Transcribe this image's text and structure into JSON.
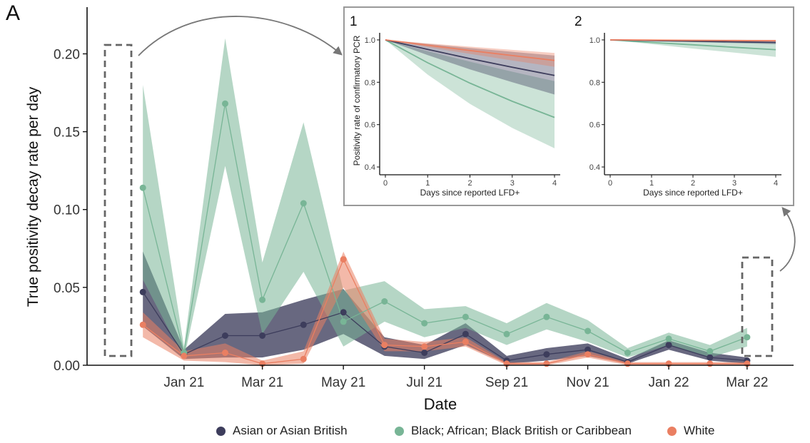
{
  "panel_label": "A",
  "colors": {
    "asian": "#3d3d5c",
    "black": "#78b596",
    "white": "#ea7f62",
    "box": "#666666",
    "arrow": "#777777"
  },
  "legend": [
    {
      "key": "asian",
      "label": "Asian or Asian British"
    },
    {
      "key": "black",
      "label": "Black; African; Black British or Caribbean"
    },
    {
      "key": "white",
      "label": "White"
    }
  ],
  "chart_data": [
    {
      "type": "line",
      "xlabel": "Date",
      "ylabel": "True positivity decay rate per day",
      "ylim": [
        0,
        0.23
      ],
      "y_ticks": [
        0,
        0.05,
        0.1,
        0.15,
        0.2
      ],
      "y_tick_labels": [
        "0.00",
        "0.05",
        "0.10",
        "0.15",
        "0.20"
      ],
      "x_ticks": [
        {
          "date": "2021-01-01",
          "label": "Jan 21"
        },
        {
          "date": "2021-03-01",
          "label": "Mar 21"
        },
        {
          "date": "2021-05-01",
          "label": "May 21"
        },
        {
          "date": "2021-07-01",
          "label": "Jul 21"
        },
        {
          "date": "2021-09-01",
          "label": "Sep 21"
        },
        {
          "date": "2021-11-01",
          "label": "Nov 21"
        },
        {
          "date": "2022-01-01",
          "label": "Jan 22"
        },
        {
          "date": "2022-03-01",
          "label": "Mar 22"
        }
      ],
      "xlim": [
        "2020-10-20",
        "2022-04-05"
      ],
      "series": [
        {
          "name": "Asian or Asian British",
          "key": "asian",
          "points": [
            {
              "date": "2020-12-01",
              "y": 0.047,
              "lo": 0.025,
              "hi": 0.073
            },
            {
              "date": "2021-01-01",
              "y": 0.007,
              "lo": 0.004,
              "hi": 0.01
            },
            {
              "date": "2021-02-01",
              "y": 0.019,
              "lo": 0.005,
              "hi": 0.033
            },
            {
              "date": "2021-03-01",
              "y": 0.019,
              "lo": 0.005,
              "hi": 0.034
            },
            {
              "date": "2021-04-01",
              "y": 0.026,
              "lo": 0.01,
              "hi": 0.042
            },
            {
              "date": "2021-05-01",
              "y": 0.034,
              "lo": 0.02,
              "hi": 0.049
            },
            {
              "date": "2021-06-01",
              "y": 0.012,
              "lo": 0.006,
              "hi": 0.018
            },
            {
              "date": "2021-07-01",
              "y": 0.008,
              "lo": 0.004,
              "hi": 0.013
            },
            {
              "date": "2021-08-01",
              "y": 0.02,
              "lo": 0.013,
              "hi": 0.027
            },
            {
              "date": "2021-09-01",
              "y": 0.003,
              "lo": 0.001,
              "hi": 0.006
            },
            {
              "date": "2021-10-01",
              "y": 0.007,
              "lo": 0.003,
              "hi": 0.011
            },
            {
              "date": "2021-11-01",
              "y": 0.01,
              "lo": 0.006,
              "hi": 0.014
            },
            {
              "date": "2021-12-01",
              "y": 0.002,
              "lo": 0.001,
              "hi": 0.004
            },
            {
              "date": "2022-01-01",
              "y": 0.013,
              "lo": 0.01,
              "hi": 0.016
            },
            {
              "date": "2022-02-01",
              "y": 0.005,
              "lo": 0.003,
              "hi": 0.008
            },
            {
              "date": "2022-03-01",
              "y": 0.003,
              "lo": 0.001,
              "hi": 0.005
            }
          ]
        },
        {
          "name": "Black; African; Black British or Caribbean",
          "key": "black",
          "points": [
            {
              "date": "2020-12-01",
              "y": 0.114,
              "lo": 0.055,
              "hi": 0.18
            },
            {
              "date": "2021-01-01",
              "y": 0.008,
              "lo": 0.004,
              "hi": 0.012
            },
            {
              "date": "2021-02-01",
              "y": 0.168,
              "lo": 0.128,
              "hi": 0.21
            },
            {
              "date": "2021-03-01",
              "y": 0.042,
              "lo": 0.02,
              "hi": 0.066
            },
            {
              "date": "2021-04-01",
              "y": 0.104,
              "lo": 0.06,
              "hi": 0.156
            },
            {
              "date": "2021-05-01",
              "y": 0.028,
              "lo": 0.012,
              "hi": 0.048
            },
            {
              "date": "2021-06-01",
              "y": 0.041,
              "lo": 0.028,
              "hi": 0.054
            },
            {
              "date": "2021-07-01",
              "y": 0.027,
              "lo": 0.018,
              "hi": 0.036
            },
            {
              "date": "2021-08-01",
              "y": 0.031,
              "lo": 0.024,
              "hi": 0.038
            },
            {
              "date": "2021-09-01",
              "y": 0.02,
              "lo": 0.013,
              "hi": 0.027
            },
            {
              "date": "2021-10-01",
              "y": 0.031,
              "lo": 0.023,
              "hi": 0.04
            },
            {
              "date": "2021-11-01",
              "y": 0.022,
              "lo": 0.015,
              "hi": 0.029
            },
            {
              "date": "2021-12-01",
              "y": 0.008,
              "lo": 0.005,
              "hi": 0.011
            },
            {
              "date": "2022-01-01",
              "y": 0.017,
              "lo": 0.013,
              "hi": 0.021
            },
            {
              "date": "2022-02-01",
              "y": 0.009,
              "lo": 0.005,
              "hi": 0.013
            },
            {
              "date": "2022-03-01",
              "y": 0.018,
              "lo": 0.012,
              "hi": 0.024
            }
          ]
        },
        {
          "name": "White",
          "key": "white",
          "points": [
            {
              "date": "2020-12-01",
              "y": 0.026,
              "lo": 0.018,
              "hi": 0.034
            },
            {
              "date": "2021-01-01",
              "y": 0.006,
              "lo": 0.003,
              "hi": 0.009
            },
            {
              "date": "2021-02-01",
              "y": 0.008,
              "lo": 0.002,
              "hi": 0.014
            },
            {
              "date": "2021-03-01",
              "y": 0.001,
              "lo": 0.0,
              "hi": 0.003
            },
            {
              "date": "2021-04-01",
              "y": 0.004,
              "lo": 0.001,
              "hi": 0.009
            },
            {
              "date": "2021-05-01",
              "y": 0.068,
              "lo": 0.05,
              "hi": 0.073
            },
            {
              "date": "2021-06-01",
              "y": 0.013,
              "lo": 0.009,
              "hi": 0.017
            },
            {
              "date": "2021-07-01",
              "y": 0.012,
              "lo": 0.009,
              "hi": 0.015
            },
            {
              "date": "2021-08-01",
              "y": 0.015,
              "lo": 0.012,
              "hi": 0.018
            },
            {
              "date": "2021-09-01",
              "y": 0.001,
              "lo": 0.0,
              "hi": 0.002
            },
            {
              "date": "2021-10-01",
              "y": 0.001,
              "lo": 0.0,
              "hi": 0.002
            },
            {
              "date": "2021-11-01",
              "y": 0.007,
              "lo": 0.005,
              "hi": 0.009
            },
            {
              "date": "2021-12-01",
              "y": 0.001,
              "lo": 0.0,
              "hi": 0.002
            },
            {
              "date": "2022-01-01",
              "y": 0.001,
              "lo": 0.0,
              "hi": 0.002
            },
            {
              "date": "2022-02-01",
              "y": 0.001,
              "lo": 0.0,
              "hi": 0.002
            },
            {
              "date": "2022-03-01",
              "y": 0.001,
              "lo": 0.0,
              "hi": 0.002
            }
          ]
        }
      ]
    },
    {
      "type": "line",
      "panel": "1",
      "xlabel": "Days since reported LFD+",
      "ylabel": "Positivity rate of confirmatory PCR",
      "xlim": [
        0,
        4
      ],
      "ylim": [
        0.38,
        1.02
      ],
      "x_ticks": [
        0,
        1,
        2,
        3,
        4
      ],
      "x_tick_labels": [
        "0",
        "1",
        "2",
        "3",
        "4"
      ],
      "y_ticks": [
        0.4,
        0.6,
        0.8,
        1.0
      ],
      "y_tick_labels": [
        "0.4",
        "0.6",
        "0.8",
        "1.0"
      ],
      "series": [
        {
          "key": "black",
          "x": [
            0,
            1,
            2,
            3,
            4
          ],
          "y": [
            1.0,
            0.892,
            0.796,
            0.71,
            0.634
          ],
          "lo": [
            1.0,
            0.836,
            0.698,
            0.584,
            0.488
          ],
          "hi": [
            1.0,
            0.947,
            0.897,
            0.85,
            0.805
          ]
        },
        {
          "key": "asian",
          "x": [
            0,
            1,
            2,
            3,
            4
          ],
          "y": [
            1.0,
            0.955,
            0.912,
            0.871,
            0.832
          ],
          "lo": [
            1.0,
            0.928,
            0.861,
            0.8,
            0.742
          ],
          "hi": [
            1.0,
            0.981,
            0.962,
            0.944,
            0.926
          ]
        },
        {
          "key": "white",
          "x": [
            0,
            1,
            2,
            3,
            4
          ],
          "y": [
            1.0,
            0.975,
            0.95,
            0.926,
            0.903
          ],
          "lo": [
            1.0,
            0.966,
            0.934,
            0.903,
            0.873
          ],
          "hi": [
            1.0,
            0.984,
            0.968,
            0.953,
            0.938
          ]
        }
      ]
    },
    {
      "type": "line",
      "panel": "2",
      "xlabel": "Days since reported LFD+",
      "ylabel": "",
      "xlim": [
        0,
        4
      ],
      "ylim": [
        0.38,
        1.02
      ],
      "x_ticks": [
        0,
        1,
        2,
        3,
        4
      ],
      "x_tick_labels": [
        "0",
        "1",
        "2",
        "3",
        "4"
      ],
      "y_ticks": [
        0.4,
        0.6,
        0.8,
        1.0
      ],
      "y_tick_labels": [
        "0.4",
        "0.6",
        "0.8",
        "1.0"
      ],
      "series": [
        {
          "key": "black",
          "x": [
            0,
            1,
            2,
            3,
            4
          ],
          "y": [
            1.0,
            0.988,
            0.977,
            0.965,
            0.954
          ],
          "lo": [
            1.0,
            0.98,
            0.959,
            0.94,
            0.92
          ],
          "hi": [
            1.0,
            0.996,
            0.992,
            0.989,
            0.985
          ]
        },
        {
          "key": "asian",
          "x": [
            0,
            1,
            2,
            3,
            4
          ],
          "y": [
            1.0,
            0.997,
            0.994,
            0.991,
            0.988
          ],
          "lo": [
            1.0,
            0.995,
            0.99,
            0.985,
            0.98
          ],
          "hi": [
            1.0,
            0.999,
            0.998,
            0.997,
            0.996
          ]
        },
        {
          "key": "white",
          "x": [
            0,
            1,
            2,
            3,
            4
          ],
          "y": [
            1.0,
            0.999,
            0.998,
            0.997,
            0.996
          ],
          "lo": [
            1.0,
            0.998,
            0.996,
            0.994,
            0.992
          ],
          "hi": [
            1.0,
            1.0,
            1.0,
            1.0,
            1.0
          ]
        }
      ]
    }
  ],
  "inset_labels": [
    "1",
    "2"
  ]
}
